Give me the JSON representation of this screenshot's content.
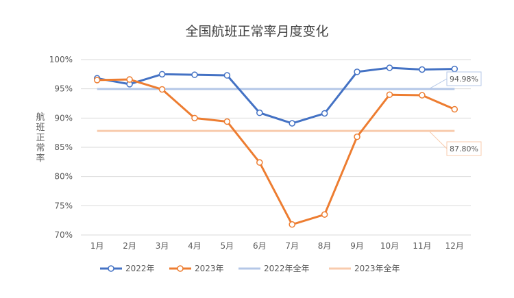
{
  "chart_data": {
    "type": "line",
    "title": "全国航班正常率月度变化",
    "xlabel": "",
    "ylabel": "航班正常率",
    "categories": [
      "1月",
      "2月",
      "3月",
      "4月",
      "5月",
      "6月",
      "7月",
      "8月",
      "9月",
      "10月",
      "11月",
      "12月"
    ],
    "ylim": [
      70,
      100
    ],
    "yticks": [
      "70%",
      "75%",
      "80%",
      "85%",
      "90%",
      "95%",
      "100%"
    ],
    "grid": "horizontal",
    "legend_position": "bottom",
    "series": [
      {
        "name": "2022年",
        "color": "#4472C4",
        "marker": "circle",
        "values": [
          96.8,
          95.8,
          97.5,
          97.4,
          97.3,
          90.9,
          89.1,
          90.8,
          97.9,
          98.6,
          98.3,
          98.4
        ]
      },
      {
        "name": "2023年",
        "color": "#ED7D31",
        "marker": "circle",
        "values": [
          96.5,
          96.6,
          94.9,
          90.0,
          89.4,
          82.4,
          71.8,
          73.5,
          86.8,
          94.0,
          93.9,
          91.5
        ]
      },
      {
        "name": "2022年全年",
        "color": "#B4C7E7",
        "marker": "none",
        "value": 94.98
      },
      {
        "name": "2023年全年",
        "color": "#F8CBAD",
        "marker": "none",
        "value": 87.8
      }
    ],
    "annotations": [
      {
        "text": "94.98%",
        "series": "2022年全年"
      },
      {
        "text": "87.80%",
        "series": "2023年全年"
      }
    ]
  }
}
